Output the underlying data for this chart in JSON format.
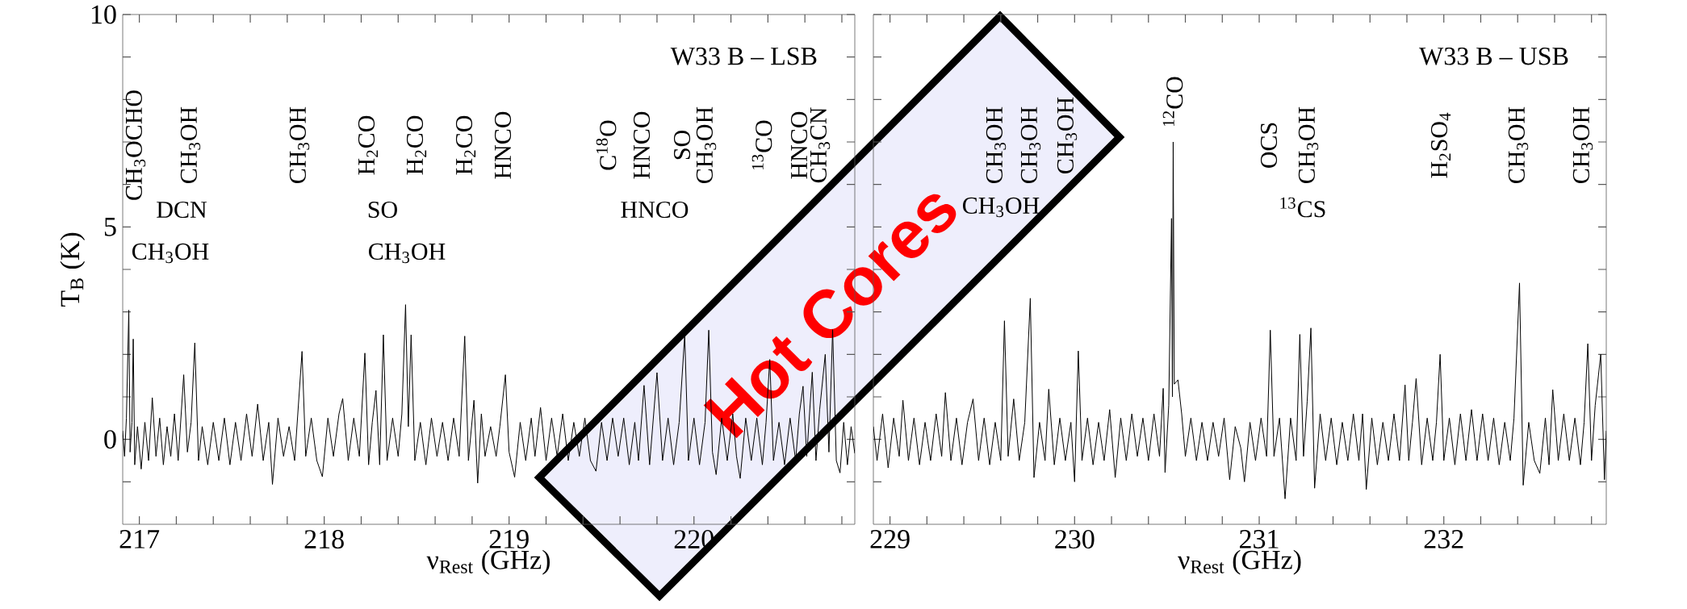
{
  "chart_data": [
    {
      "type": "line",
      "title": "W33 B – LSB",
      "xlabel": "ν$_{Rest}$ (GHz)",
      "ylabel": "T$_{B}$ (K)",
      "xlim": [
        216.91,
        220.87
      ],
      "ylim": [
        -2,
        10
      ],
      "xticks": [
        217,
        {
          "value": 217.2,
          "label": null
        },
        {
          "value": 217.4,
          "label": null
        },
        {
          "value": 217.6,
          "label": null
        },
        {
          "value": 217.8,
          "label": null
        },
        218,
        {
          "value": 218.2,
          "label": null
        },
        {
          "value": 218.4,
          "label": null
        },
        {
          "value": 218.6,
          "label": null
        },
        {
          "value": 218.8,
          "label": null
        },
        219,
        {
          "value": 219.2,
          "label": null
        },
        {
          "value": 219.4,
          "label": null
        },
        {
          "value": 219.6,
          "label": null
        },
        {
          "value": 219.8,
          "label": null
        },
        220,
        {
          "value": 220.2,
          "label": null
        },
        {
          "value": 220.4,
          "label": null
        },
        {
          "value": 220.6,
          "label": null
        },
        {
          "value": 220.8,
          "label": null
        }
      ],
      "yticks": [
        {
          "value": -1,
          "label": null
        },
        0,
        {
          "value": 1,
          "label": null
        },
        {
          "value": 2,
          "label": null
        },
        {
          "value": 3,
          "label": null
        },
        {
          "value": 4,
          "label": null
        },
        5,
        {
          "value": 6,
          "label": null
        },
        {
          "value": 7,
          "label": null
        },
        {
          "value": 8,
          "label": null
        },
        {
          "value": 9,
          "label": null
        },
        10
      ],
      "series": [
        {
          "color": "#000000",
          "x": [
            216.91,
            216.92,
            216.93,
            216.943,
            216.95,
            216.96,
            216.967,
            216.975,
            216.99,
            217.01,
            217.03,
            217.05,
            217.07,
            217.09,
            217.11,
            217.13,
            217.15,
            217.17,
            217.19,
            217.21,
            217.24,
            217.26,
            217.28,
            217.3,
            217.32,
            217.34,
            217.37,
            217.4,
            217.43,
            217.46,
            217.49,
            217.52,
            217.55,
            217.58,
            217.61,
            217.64,
            217.67,
            217.7,
            217.72,
            217.75,
            217.78,
            217.81,
            217.84,
            217.88,
            217.9,
            217.93,
            217.96,
            217.99,
            218.02,
            218.05,
            218.08,
            218.1,
            218.13,
            218.16,
            218.19,
            218.22,
            218.24,
            218.26,
            218.28,
            218.3,
            218.32,
            218.34,
            218.37,
            218.4,
            218.42,
            218.44,
            218.455,
            218.47,
            218.49,
            218.52,
            218.55,
            218.58,
            218.61,
            218.64,
            218.67,
            218.7,
            218.73,
            218.76,
            218.78,
            218.81,
            218.83,
            218.85,
            218.87,
            218.9,
            218.93,
            218.95,
            218.98,
            219.0,
            219.03,
            219.06,
            219.09,
            219.12,
            219.14,
            219.17,
            219.2,
            219.23,
            219.26,
            219.29,
            219.32,
            219.35,
            219.38,
            219.41,
            219.44,
            219.47,
            219.5,
            219.53,
            219.56,
            219.59,
            219.62,
            219.65,
            219.68,
            219.7,
            219.73,
            219.76,
            219.8,
            219.83,
            219.86,
            219.89,
            219.92,
            219.95,
            219.97,
            220.0,
            220.03,
            220.06,
            220.08,
            220.1,
            220.12,
            220.15,
            220.18,
            220.21,
            220.23,
            220.25,
            220.28,
            220.31,
            220.34,
            220.37,
            220.39,
            220.41,
            220.43,
            220.46,
            220.49,
            220.52,
            220.55,
            220.57,
            220.59,
            220.61,
            220.64,
            220.66,
            220.68,
            220.71,
            220.73,
            220.75,
            220.77,
            220.79,
            220.81,
            220.83,
            220.85,
            220.87
          ],
          "values": [
            0.2,
            -0.4,
            0.5,
            3.04,
            -0.3,
            0.4,
            2.36,
            -0.6,
            0.3,
            -0.7,
            0.4,
            -0.5,
            0.98,
            -0.4,
            0.5,
            -0.6,
            0.3,
            -0.4,
            0.6,
            -0.5,
            1.52,
            -0.3,
            0.4,
            2.27,
            -0.5,
            0.3,
            -0.6,
            0.4,
            -0.5,
            0.5,
            -0.6,
            0.4,
            -0.5,
            0.6,
            -0.4,
            0.83,
            -0.5,
            0.4,
            -1.06,
            0.5,
            -0.4,
            0.3,
            -0.5,
            2.07,
            -0.4,
            0.5,
            -0.5,
            -0.88,
            0.5,
            -0.4,
            0.6,
            0.96,
            -0.5,
            0.5,
            -0.4,
            2.03,
            -0.6,
            0.4,
            1.15,
            -0.6,
            2.46,
            -0.5,
            0.5,
            -0.4,
            0.6,
            3.17,
            0.3,
            2.46,
            -0.5,
            0.4,
            -0.6,
            0.5,
            -0.4,
            0.4,
            -0.5,
            0.5,
            -0.4,
            2.43,
            -0.5,
            0.92,
            -1.03,
            0.6,
            -0.4,
            0.3,
            -0.4,
            0.3,
            1.52,
            -0.3,
            -0.89,
            0.4,
            -0.5,
            0.5,
            -0.4,
            0.75,
            -0.5,
            0.5,
            -0.4,
            0.6,
            -0.5,
            0.4,
            -0.4,
            0.5,
            -0.5,
            -0.75,
            0.4,
            -0.5,
            0.5,
            -0.4,
            0.5,
            -0.6,
            0.4,
            -0.5,
            1.27,
            -0.6,
            1.57,
            -0.5,
            0.5,
            -0.6,
            0.4,
            2.46,
            -0.5,
            0.5,
            -0.6,
            0.4,
            2.57,
            -0.3,
            -0.83,
            0.5,
            -0.5,
            0.6,
            -0.4,
            -0.92,
            0.5,
            -0.5,
            0.5,
            -0.6,
            0.4,
            1.88,
            -0.5,
            0.4,
            -0.6,
            0.5,
            -0.5,
            0.6,
            1.25,
            -0.4,
            1.58,
            -0.5,
            0.7,
            2.0,
            -0.3,
            2.58,
            -0.5,
            -0.79,
            0.4,
            -0.6,
            0.3,
            -0.33
          ]
        }
      ],
      "annotations": [
        "CH$_{3}$OCHO",
        "CH$_{3}$OH",
        "DCN",
        "CH$_{3}$OH",
        "CH$_{3}$OH",
        "H$_{2}$CO",
        "SO",
        "CH$_{3}$OH",
        "H$_{2}$CO",
        "H$_{2}$CO",
        "HNCO",
        "C$^{18}$O",
        "HNCO",
        "HNCO",
        "SO",
        "CH$_{3}$OH",
        "$^{13}$CO",
        "HNCO",
        "CH$_{3}$CN",
        "Hot Cores"
      ]
    },
    {
      "type": "line",
      "title": "W33 B – USB",
      "xlabel": "ν$_{Rest}$ (GHz)",
      "tick_labels": "x",
      "xlim": [
        228.91,
        232.88
      ],
      "ylim": [
        -2,
        10
      ],
      "xticks": [
        229,
        {
          "value": 229.2,
          "label": null
        },
        {
          "value": 229.4,
          "label": null
        },
        {
          "value": 229.6,
          "label": null
        },
        {
          "value": 229.8,
          "label": null
        },
        230,
        {
          "value": 230.2,
          "label": null
        },
        {
          "value": 230.4,
          "label": null
        },
        {
          "value": 230.6,
          "label": null
        },
        {
          "value": 230.8,
          "label": null
        },
        231,
        {
          "value": 231.2,
          "label": null
        },
        {
          "value": 231.4,
          "label": null
        },
        {
          "value": 231.6,
          "label": null
        },
        {
          "value": 231.8,
          "label": null
        },
        232,
        {
          "value": 232.2,
          "label": null
        },
        {
          "value": 232.4,
          "label": null
        },
        {
          "value": 232.6,
          "label": null
        },
        {
          "value": 232.8,
          "label": null
        }
      ],
      "yticks": [
        {
          "value": -1,
          "label": null
        },
        0,
        {
          "value": 1,
          "label": null
        },
        {
          "value": 2,
          "label": null
        },
        {
          "value": 3,
          "label": null
        },
        {
          "value": 4,
          "label": null
        },
        5,
        {
          "value": 6,
          "label": null
        },
        {
          "value": 7,
          "label": null
        },
        {
          "value": 8,
          "label": null
        },
        {
          "value": 9,
          "label": null
        },
        10
      ],
      "series": [
        {
          "color": "#000000",
          "x": [
            228.91,
            228.93,
            228.96,
            228.99,
            229.02,
            229.05,
            229.07,
            229.1,
            229.13,
            229.16,
            229.19,
            229.22,
            229.25,
            229.28,
            229.3,
            229.33,
            229.36,
            229.39,
            229.42,
            229.45,
            229.48,
            229.51,
            229.54,
            229.57,
            229.6,
            229.62,
            229.64,
            229.67,
            229.7,
            229.73,
            229.76,
            229.78,
            229.81,
            229.84,
            229.86,
            229.89,
            229.92,
            229.95,
            229.98,
            230.0,
            230.02,
            230.04,
            230.07,
            230.1,
            230.13,
            230.16,
            230.19,
            230.22,
            230.25,
            230.28,
            230.31,
            230.34,
            230.37,
            230.4,
            230.43,
            230.46,
            230.48,
            230.49,
            230.51,
            230.525,
            230.53,
            230.534,
            230.54,
            230.56,
            230.58,
            230.6,
            230.63,
            230.66,
            230.69,
            230.72,
            230.75,
            230.78,
            230.81,
            230.84,
            230.87,
            230.9,
            230.92,
            230.95,
            230.98,
            231.01,
            231.04,
            231.06,
            231.08,
            231.11,
            231.14,
            231.17,
            231.2,
            231.22,
            231.24,
            231.26,
            231.28,
            231.3,
            231.33,
            231.36,
            231.39,
            231.42,
            231.45,
            231.48,
            231.51,
            231.54,
            231.56,
            231.58,
            231.61,
            231.64,
            231.67,
            231.7,
            231.73,
            231.76,
            231.79,
            231.81,
            231.83,
            231.85,
            231.88,
            231.91,
            231.94,
            231.96,
            231.98,
            232.0,
            232.03,
            232.06,
            232.09,
            232.12,
            232.15,
            232.18,
            232.21,
            232.24,
            232.27,
            232.3,
            232.33,
            232.36,
            232.38,
            232.41,
            232.43,
            232.46,
            232.49,
            232.52,
            232.55,
            232.57,
            232.59,
            232.62,
            232.65,
            232.68,
            232.71,
            232.74,
            232.76,
            232.78,
            232.8,
            232.82,
            232.85,
            232.87,
            232.88
          ],
          "values": [
            0.3,
            -0.5,
            0.6,
            -0.67,
            0.5,
            -0.4,
            0.92,
            -0.5,
            0.5,
            -0.6,
            0.4,
            -0.5,
            0.6,
            -0.4,
            1.1,
            -0.5,
            0.5,
            -0.6,
            0.4,
            0.95,
            -0.5,
            0.5,
            -0.6,
            0.4,
            -0.5,
            2.79,
            -0.4,
            0.95,
            -0.5,
            0.4,
            3.32,
            -0.9,
            0.4,
            -0.5,
            1.18,
            -0.6,
            0.5,
            -0.5,
            0.4,
            -1.0,
            2.08,
            -0.5,
            0.5,
            -0.6,
            0.4,
            -0.5,
            0.7,
            -0.9,
            0.5,
            -0.5,
            0.6,
            -0.4,
            0.5,
            -0.5,
            0.6,
            -0.4,
            1.2,
            -0.78,
            0.8,
            5.2,
            1.0,
            7.0,
            1.3,
            1.4,
            0.6,
            -0.4,
            0.5,
            -0.5,
            0.4,
            -0.5,
            0.4,
            -0.4,
            0.5,
            -0.95,
            0.3,
            -0.2,
            -1.0,
            0.4,
            -0.5,
            0.5,
            -0.4,
            2.57,
            -0.4,
            0.5,
            -1.4,
            0.5,
            -0.5,
            2.47,
            -0.4,
            0.9,
            2.62,
            -1.15,
            0.6,
            -0.5,
            0.5,
            -0.6,
            0.4,
            -0.5,
            0.6,
            -0.5,
            0.6,
            -1.18,
            0.5,
            -0.6,
            0.4,
            -0.5,
            0.6,
            -0.5,
            1.28,
            -0.5,
            0.4,
            1.43,
            -0.6,
            0.5,
            -0.5,
            0.4,
            2.0,
            -0.5,
            0.5,
            -0.6,
            0.6,
            -0.5,
            0.7,
            -0.5,
            0.6,
            -0.5,
            0.5,
            -0.6,
            0.4,
            -0.5,
            0.5,
            3.68,
            -1.08,
            0.4,
            -0.5,
            -0.8,
            0.5,
            -0.6,
            1.17,
            -0.5,
            0.6,
            -0.5,
            0.5,
            -0.6,
            0.4,
            2.25,
            -0.5,
            0.8,
            2.0,
            -0.95,
            0.2
          ]
        }
      ],
      "annotations": [
        "CH$_{3}$OH",
        "CH$_{3}$OH",
        "CH$_{3}$OH",
        "CH$_{3}$OH",
        "$^{12}$CO",
        "OCS",
        "CH$_{3}$OH",
        "$^{13}$CS",
        "H$_{2}$SO$_{4}$",
        "CH$_{3}$OH",
        "CH$_{3}$OH"
      ]
    }
  ]
}
